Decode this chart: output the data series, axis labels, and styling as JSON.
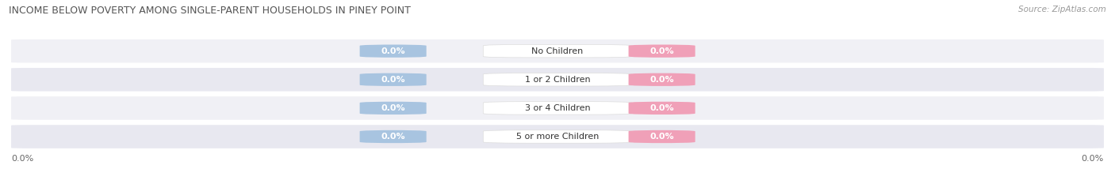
{
  "title": "INCOME BELOW POVERTY AMONG SINGLE-PARENT HOUSEHOLDS IN PINEY POINT",
  "source": "Source: ZipAtlas.com",
  "categories": [
    "No Children",
    "1 or 2 Children",
    "3 or 4 Children",
    "5 or more Children"
  ],
  "single_father_values": [
    0.0,
    0.0,
    0.0,
    0.0
  ],
  "single_mother_values": [
    0.0,
    0.0,
    0.0,
    0.0
  ],
  "father_color": "#a8c4e0",
  "mother_color": "#f0a0b8",
  "row_bg_colors": [
    "#f0f0f5",
    "#e8e8f0"
  ],
  "title_fontsize": 9,
  "source_fontsize": 7.5,
  "label_fontsize": 8,
  "cat_fontsize": 8,
  "tick_fontsize": 8,
  "figsize": [
    14.06,
    2.33
  ],
  "dpi": 100
}
